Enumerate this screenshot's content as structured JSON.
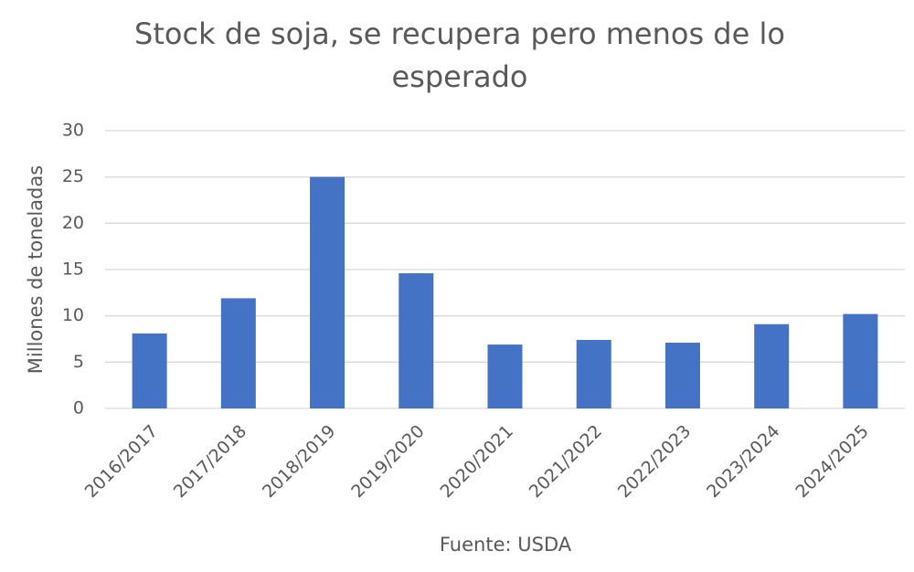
{
  "chart_data": {
    "type": "bar",
    "title": "Stock de soja, se recupera pero menos de lo esperado",
    "y_label": "Millones de toneladas",
    "x_label": "Fuente: USDA",
    "categories": [
      "2016/2017",
      "2017/2018",
      "2018/2019",
      "2019/2020",
      "2020/2021",
      "2021/2022",
      "2022/2023",
      "2023/2024",
      "2024/2025"
    ],
    "values": [
      8.1,
      11.9,
      25.0,
      14.6,
      6.9,
      7.4,
      7.1,
      9.1,
      10.2
    ],
    "color": "#4472c4",
    "ylim": [
      0,
      30
    ],
    "yticks": [
      0,
      5,
      10,
      15,
      20,
      25,
      30
    ],
    "grid": true
  }
}
